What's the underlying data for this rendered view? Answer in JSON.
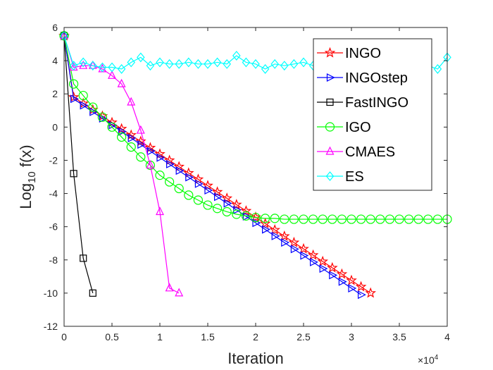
{
  "chart_data": {
    "type": "line",
    "xlabel": "Iteration",
    "ylabel_main": "Log",
    "ylabel_sub": "10",
    "ylabel_tail": " f(x)",
    "x_exponent_base": "×10",
    "x_exponent_power": "4",
    "xlim": [
      0,
      40000
    ],
    "ylim": [
      -12,
      6
    ],
    "x_ticks": [
      0,
      5000,
      10000,
      15000,
      20000,
      25000,
      30000,
      35000,
      40000
    ],
    "x_tick_labels": [
      "0",
      "0.5",
      "1",
      "1.5",
      "2",
      "2.5",
      "3",
      "3.5",
      "4"
    ],
    "y_ticks": [
      -12,
      -10,
      -8,
      -6,
      -4,
      -2,
      0,
      2,
      4,
      6
    ],
    "y_tick_labels": [
      "-12",
      "-10",
      "-8",
      "-6",
      "-4",
      "-2",
      "0",
      "2",
      "4",
      "6"
    ],
    "grid": false,
    "legend_position": "top-right",
    "series": [
      {
        "name": "INGO",
        "color": "#ff0000",
        "marker": "star",
        "x": [
          0,
          1000,
          32000
        ],
        "y": [
          5.5,
          1.8,
          -10.0
        ]
      },
      {
        "name": "INGOstep",
        "color": "#0000ff",
        "marker": "triangle-right",
        "x": [
          0,
          1000,
          31000
        ],
        "y": [
          5.5,
          1.7,
          -10.1
        ]
      },
      {
        "name": "FastINGO",
        "color": "#000000",
        "marker": "square",
        "x": [
          0,
          1000,
          2000,
          3000
        ],
        "y": [
          5.5,
          -2.8,
          -7.9,
          -10.0
        ]
      },
      {
        "name": "IGO",
        "color": "#00ff00",
        "marker": "circle",
        "x": [
          0,
          1000,
          2000,
          3000,
          4000,
          5000,
          6000,
          7000,
          8000,
          9000,
          10000,
          11000,
          12000,
          13000,
          14000,
          15000,
          16000,
          17000,
          18000,
          19000,
          20000,
          21000,
          22000,
          23000,
          24000,
          25000,
          26000,
          27000,
          28000,
          29000,
          30000,
          31000,
          32000,
          33000,
          34000,
          35000,
          36000,
          37000,
          38000,
          39000,
          40000
        ],
        "y": [
          5.5,
          2.6,
          1.9,
          1.2,
          0.6,
          0.0,
          -0.6,
          -1.2,
          -1.8,
          -2.3,
          -2.9,
          -3.3,
          -3.7,
          -4.1,
          -4.4,
          -4.7,
          -4.9,
          -5.1,
          -5.25,
          -5.35,
          -5.45,
          -5.5,
          -5.5,
          -5.55,
          -5.55,
          -5.55,
          -5.55,
          -5.55,
          -5.55,
          -5.55,
          -5.55,
          -5.55,
          -5.55,
          -5.55,
          -5.55,
          -5.55,
          -5.55,
          -5.55,
          -5.55,
          -5.55,
          -5.55
        ]
      },
      {
        "name": "CMAES",
        "color": "#ff00ff",
        "marker": "triangle-up",
        "x": [
          0,
          1000,
          2000,
          3000,
          4000,
          5000,
          6000,
          7000,
          8000,
          9000,
          10000,
          11000,
          12000
        ],
        "y": [
          5.5,
          3.6,
          3.7,
          3.7,
          3.5,
          3.1,
          2.6,
          1.5,
          -0.2,
          -2.3,
          -5.1,
          -9.7,
          -10.0
        ]
      },
      {
        "name": "ES",
        "color": "#00ffff",
        "marker": "diamond",
        "x": [
          0,
          1000,
          2000,
          3000,
          4000,
          5000,
          6000,
          7000,
          8000,
          9000,
          10000,
          11000,
          12000,
          13000,
          14000,
          15000,
          16000,
          17000,
          18000,
          19000,
          20000,
          21000,
          22000,
          23000,
          24000,
          25000,
          26000,
          27000,
          28000,
          29000,
          30000,
          31000,
          32000,
          33000,
          34000,
          35000,
          36000,
          37000,
          38000,
          39000,
          40000
        ],
        "y": [
          5.5,
          3.7,
          3.9,
          3.7,
          3.6,
          3.6,
          3.5,
          3.9,
          4.2,
          3.7,
          3.9,
          3.8,
          3.8,
          3.9,
          3.8,
          3.8,
          3.9,
          3.8,
          4.3,
          3.9,
          3.8,
          3.5,
          3.8,
          3.7,
          3.8,
          3.9,
          3.7,
          3.8,
          3.8,
          3.7,
          3.8,
          3.7,
          3.8,
          3.8,
          3.7,
          3.8,
          3.7,
          3.8,
          3.7,
          3.5,
          4.2
        ]
      }
    ]
  }
}
